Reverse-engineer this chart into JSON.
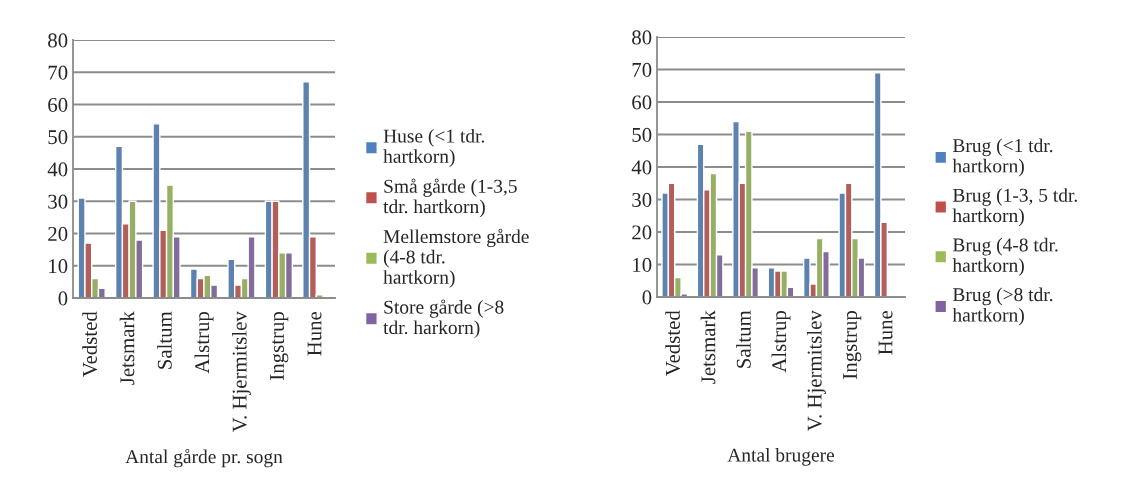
{
  "chart_data": [
    {
      "type": "bar",
      "xlabel": "Antal gårde pr. sogn",
      "categories": [
        "Vedsted",
        "Jetsmark",
        "Saltum",
        "Alstrup",
        "V. Hjermitslev",
        "Ingstrup",
        "Hune"
      ],
      "ylim": [
        0,
        80
      ],
      "yticks": [
        0,
        10,
        20,
        30,
        40,
        50,
        60,
        70,
        80
      ],
      "grid": "y",
      "legend": "right",
      "series": [
        {
          "name": "Huse (<1 tdr. hartkorn)",
          "color": "#4f81bd",
          "values": [
            31,
            47,
            54,
            9,
            12,
            30,
            67
          ]
        },
        {
          "name": "Små gårde (1-3,5 tdr. hartkorn)",
          "color": "#c0504d",
          "values": [
            17,
            23,
            21,
            6,
            4,
            30,
            19
          ]
        },
        {
          "name": "Mellemstore gårde (4-8 tdr. hartkorn)",
          "color": "#9bbb59",
          "values": [
            6,
            30,
            35,
            7,
            6,
            14,
            1
          ]
        },
        {
          "name": "Store gårde (>8 tdr. harkorn)",
          "color": "#8064a2",
          "values": [
            3,
            18,
            19,
            4,
            19,
            14,
            null
          ]
        }
      ]
    },
    {
      "type": "bar",
      "xlabel": "Antal brugere",
      "categories": [
        "Vedsted",
        "Jetsmark",
        "Saltum",
        "Alstrup",
        "V. Hjermitslev",
        "Ingstrup",
        "Hune"
      ],
      "ylim": [
        0,
        80
      ],
      "yticks": [
        0,
        10,
        20,
        30,
        40,
        50,
        60,
        70,
        80
      ],
      "grid": "y",
      "legend": "right",
      "series": [
        {
          "name": "Brug (<1 tdr. hartkorn)",
          "color": "#4f81bd",
          "values": [
            32,
            47,
            54,
            9,
            12,
            32,
            69
          ]
        },
        {
          "name": "Brug (1-3, 5 tdr. hartkorn)",
          "color": "#c0504d",
          "values": [
            35,
            33,
            35,
            8,
            4,
            35,
            23
          ]
        },
        {
          "name": "Brug (4-8 tdr. hartkorn)",
          "color": "#9bbb59",
          "values": [
            6,
            38,
            51,
            8,
            18,
            18,
            null
          ]
        },
        {
          "name": "Brug (>8 tdr. hartkorn)",
          "color": "#8064a2",
          "values": [
            1,
            13,
            9,
            3,
            14,
            12,
            null
          ]
        }
      ]
    }
  ]
}
